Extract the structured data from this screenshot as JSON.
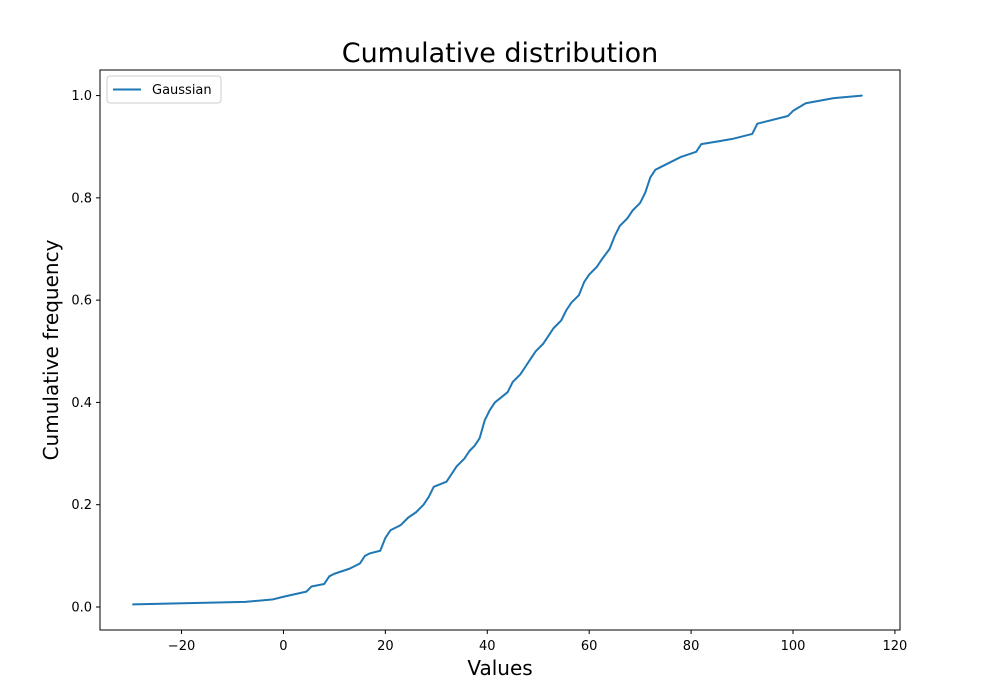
{
  "chart_data": {
    "type": "line",
    "title": "Cumulative distribution",
    "xlabel": "Values",
    "ylabel": "Cumulative frequency",
    "xlim": [
      -36,
      121
    ],
    "ylim": [
      -0.045,
      1.05
    ],
    "xticks": [
      -20,
      0,
      20,
      40,
      60,
      80,
      100,
      120
    ],
    "yticks": [
      0.0,
      0.2,
      0.4,
      0.6,
      0.8,
      1.0
    ],
    "xtick_labels": [
      "−20",
      "0",
      "20",
      "40",
      "60",
      "80",
      "100",
      "120"
    ],
    "ytick_labels": [
      "0.0",
      "0.2",
      "0.4",
      "0.6",
      "0.8",
      "1.0"
    ],
    "grid": false,
    "legend": {
      "position": "upper-left"
    },
    "series": [
      {
        "name": "Gaussian",
        "color": "#1f77b4",
        "x": [
          -29.5,
          -7.5,
          -2.0,
          0.0,
          4.5,
          5.5,
          8.0,
          9.0,
          10.0,
          13.0,
          15.0,
          16.0,
          17.0,
          19.0,
          20.0,
          21.0,
          23.0,
          24.5,
          26.0,
          27.5,
          28.5,
          29.5,
          32.0,
          33.0,
          34.0,
          35.5,
          36.5,
          37.5,
          38.5,
          39.5,
          40.5,
          41.5,
          44.0,
          45.0,
          46.5,
          47.5,
          48.5,
          49.5,
          51.0,
          52.0,
          53.0,
          54.5,
          55.5,
          56.5,
          58.0,
          59.0,
          60.0,
          61.5,
          62.5,
          64.0,
          65.0,
          66.0,
          67.5,
          68.5,
          70.0,
          71.0,
          72.0,
          73.0,
          74.0,
          76.0,
          78.0,
          81.0,
          82.0,
          85.0,
          88.0,
          92.0,
          93.0,
          99.0,
          100.0,
          102.5,
          108.0,
          113.5
        ],
        "y": [
          0.005,
          0.01,
          0.015,
          0.02,
          0.03,
          0.04,
          0.045,
          0.06,
          0.065,
          0.075,
          0.085,
          0.1,
          0.105,
          0.11,
          0.135,
          0.15,
          0.16,
          0.175,
          0.185,
          0.2,
          0.215,
          0.235,
          0.245,
          0.26,
          0.275,
          0.29,
          0.305,
          0.315,
          0.33,
          0.365,
          0.385,
          0.4,
          0.42,
          0.44,
          0.455,
          0.47,
          0.485,
          0.5,
          0.515,
          0.53,
          0.545,
          0.56,
          0.58,
          0.595,
          0.61,
          0.635,
          0.65,
          0.665,
          0.68,
          0.7,
          0.725,
          0.745,
          0.76,
          0.775,
          0.79,
          0.81,
          0.84,
          0.855,
          0.86,
          0.87,
          0.88,
          0.89,
          0.905,
          0.91,
          0.915,
          0.925,
          0.945,
          0.96,
          0.97,
          0.985,
          0.995,
          1.0
        ]
      }
    ]
  }
}
